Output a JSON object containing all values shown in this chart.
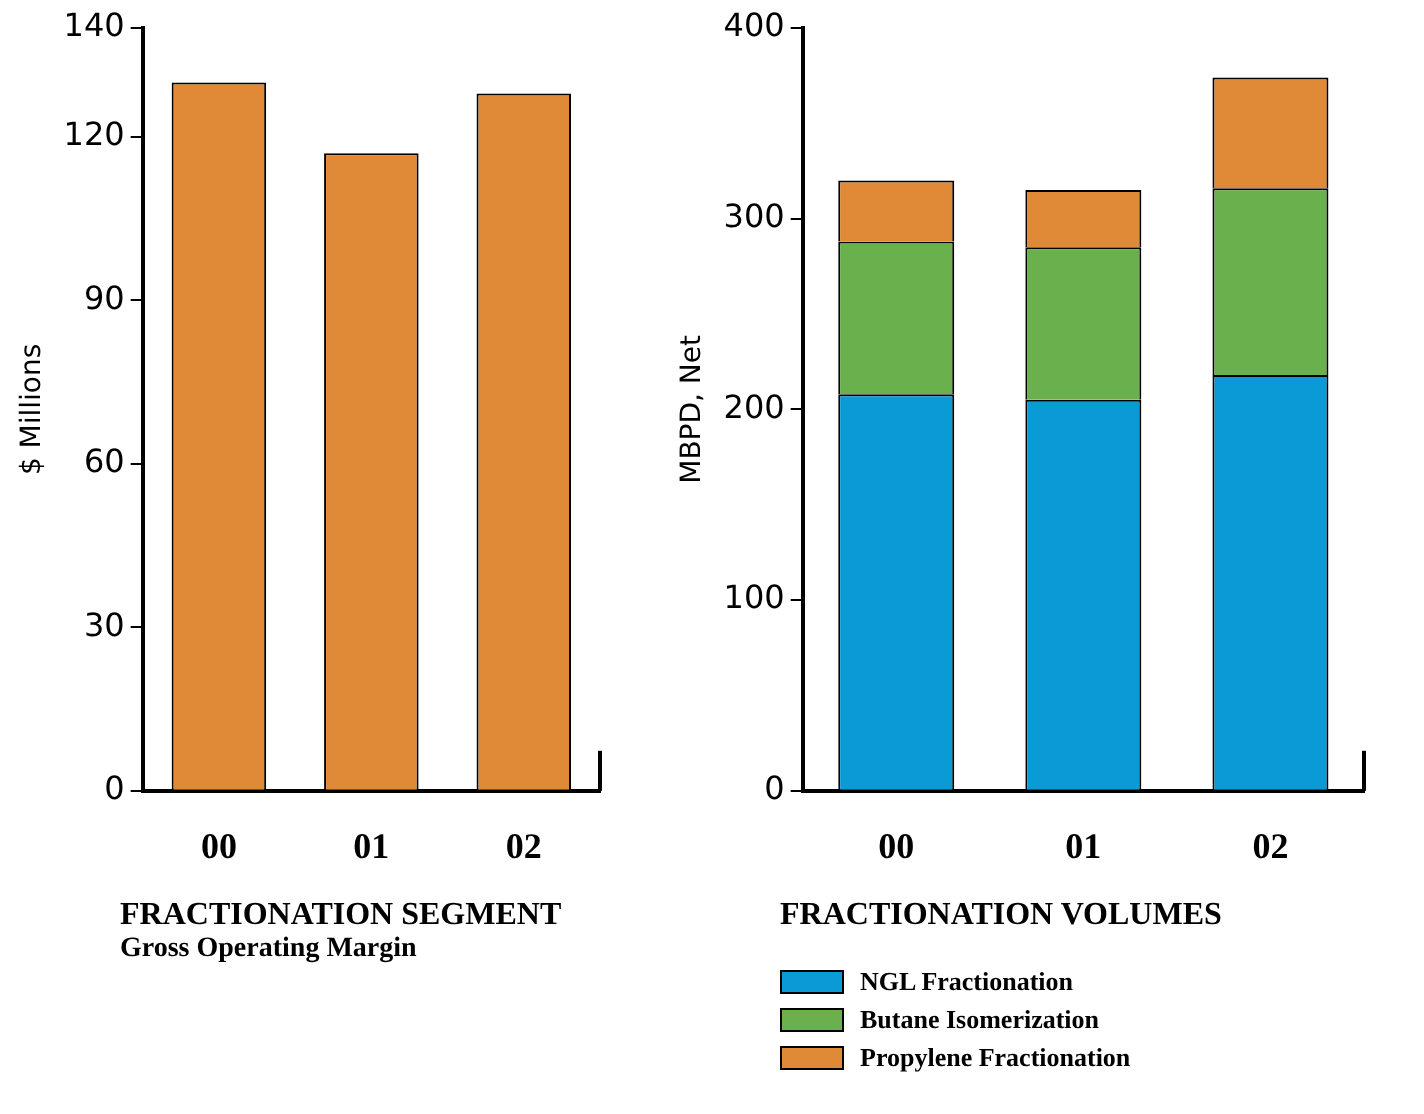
{
  "chart_data": [
    {
      "type": "bar",
      "title": "FRACTIONATION SEGMENT",
      "subtitle": "Gross Operating Margin",
      "ylabel": "$ Millions",
      "categories": [
        "00",
        "01",
        "02"
      ],
      "values": [
        130,
        117,
        128
      ],
      "color": "#e08a38",
      "ylim": [
        0,
        140
      ],
      "yticks": [
        0,
        30,
        60,
        90,
        120,
        140
      ],
      "grid": false,
      "legend": false
    },
    {
      "type": "bar",
      "title": "FRACTIONATION VOLUMES",
      "ylabel": "MBPD, Net",
      "categories": [
        "00",
        "01",
        "02"
      ],
      "stacked": true,
      "series": [
        {
          "name": "NGL Fractionation",
          "color": "#0a9bd6",
          "values": [
            208,
            205,
            218
          ]
        },
        {
          "name": "Butane Isomerization",
          "color": "#6ab04c",
          "values": [
            80,
            80,
            98
          ]
        },
        {
          "name": "Propylene Fractionation",
          "color": "#e08a38",
          "values": [
            32,
            30,
            58
          ]
        }
      ],
      "ylim": [
        0,
        400
      ],
      "yticks": [
        0,
        100,
        200,
        300,
        400
      ],
      "grid": false,
      "legend": "bottom"
    }
  ]
}
